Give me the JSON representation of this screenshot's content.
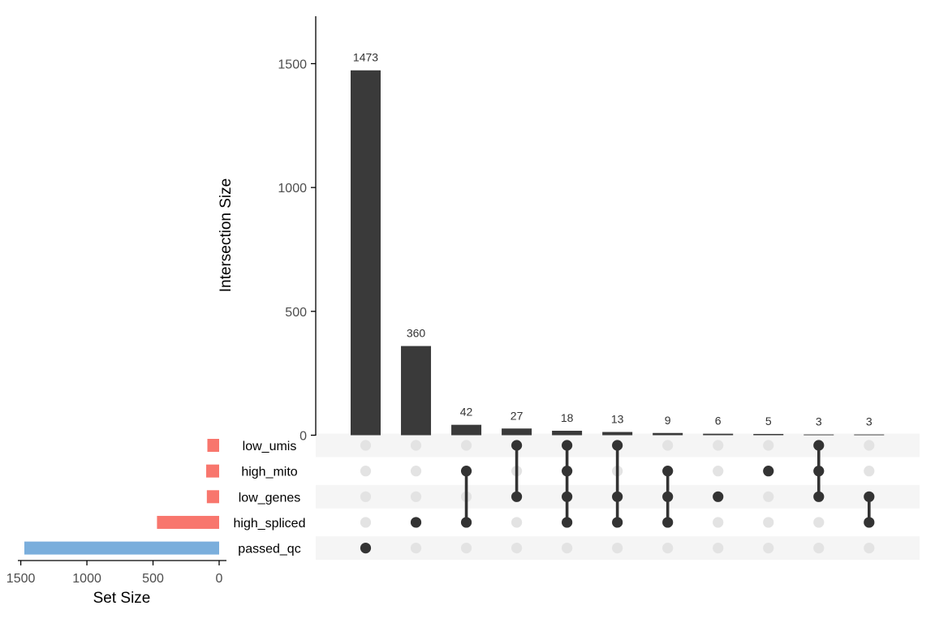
{
  "chart_data": {
    "type": "upset",
    "intersection_axis": {
      "title": "Intersection Size",
      "ticks": [
        0,
        500,
        1000,
        1500
      ],
      "ylim": [
        0,
        1700
      ]
    },
    "set_size_axis": {
      "title": "Set Size",
      "ticks": [
        1500,
        1000,
        500,
        0
      ],
      "xlim": [
        1520,
        0
      ]
    },
    "sets": [
      {
        "name": "low_umis",
        "size": 89,
        "color": "#F8766D"
      },
      {
        "name": "high_mito",
        "size": 98,
        "color": "#F8766D"
      },
      {
        "name": "low_genes",
        "size": 93,
        "color": "#F8766D"
      },
      {
        "name": "high_spliced",
        "size": 470,
        "color": "#F8766D"
      },
      {
        "name": "passed_qc",
        "size": 1473,
        "color": "#7AAEDC"
      }
    ],
    "intersections": [
      {
        "value": 1473,
        "label": "1473",
        "members": [
          "passed_qc"
        ]
      },
      {
        "value": 360,
        "label": "360",
        "members": [
          "high_spliced"
        ]
      },
      {
        "value": 42,
        "label": "42",
        "members": [
          "high_mito",
          "high_spliced"
        ]
      },
      {
        "value": 27,
        "label": "27",
        "members": [
          "low_umis",
          "low_genes"
        ]
      },
      {
        "value": 18,
        "label": "18",
        "members": [
          "low_umis",
          "high_mito",
          "low_genes",
          "high_spliced"
        ]
      },
      {
        "value": 13,
        "label": "13",
        "members": [
          "low_umis",
          "low_genes",
          "high_spliced"
        ]
      },
      {
        "value": 9,
        "label": "9",
        "members": [
          "high_mito",
          "low_genes",
          "high_spliced"
        ]
      },
      {
        "value": 6,
        "label": "6",
        "members": [
          "low_genes"
        ]
      },
      {
        "value": 5,
        "label": "5",
        "members": [
          "high_mito"
        ]
      },
      {
        "value": 3,
        "label": "3",
        "members": [
          "low_umis",
          "high_mito",
          "low_genes"
        ]
      },
      {
        "value": 3,
        "label": "3",
        "members": [
          "low_genes",
          "high_spliced"
        ]
      }
    ],
    "colors": {
      "bar": "#3a3a3a",
      "dot_active": "#333333",
      "dot_inactive": "#e3e3e3",
      "stripe": "#f5f5f5"
    }
  }
}
